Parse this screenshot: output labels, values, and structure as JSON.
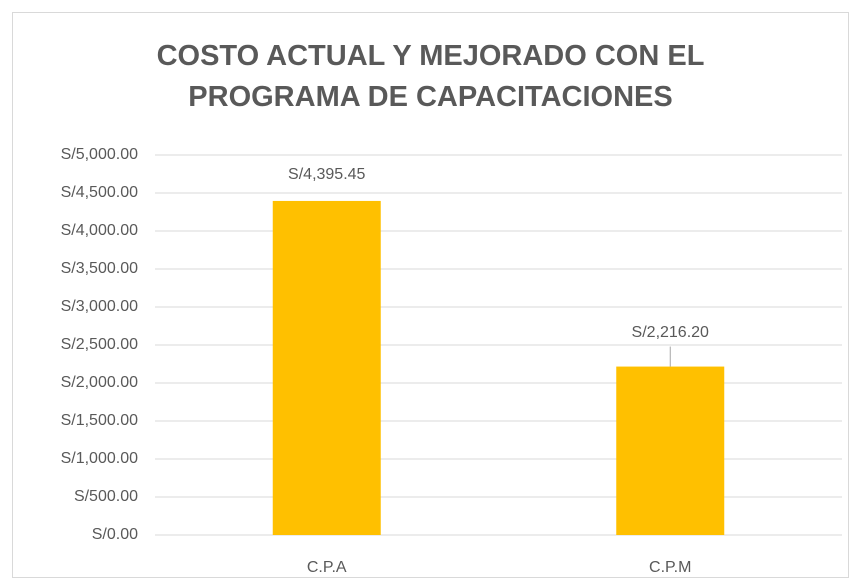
{
  "chart_data": {
    "type": "bar",
    "title": "COSTO ACTUAL Y MEJORADO CON EL PROGRAMA DE CAPACITACIONES",
    "categories": [
      "C.P.A",
      "C.P.M"
    ],
    "values": [
      4395.45,
      2216.2
    ],
    "value_labels": [
      "S/4,395.45",
      "S/2,216.20"
    ],
    "color": "#ffc000",
    "ylim": [
      0,
      5000
    ],
    "yticks": [
      {
        "value": 0,
        "label": "S/0.00"
      },
      {
        "value": 500,
        "label": "S/500.00"
      },
      {
        "value": 1000,
        "label": "S/1,000.00"
      },
      {
        "value": 1500,
        "label": "S/1,500.00"
      },
      {
        "value": 2000,
        "label": "S/2,000.00"
      },
      {
        "value": 2500,
        "label": "S/2,500.00"
      },
      {
        "value": 3000,
        "label": "S/3,000.00"
      },
      {
        "value": 3500,
        "label": "S/3,500.00"
      },
      {
        "value": 4000,
        "label": "S/4,000.00"
      },
      {
        "value": 4500,
        "label": "S/4,500.00"
      },
      {
        "value": 5000,
        "label": "S/5,000.00"
      }
    ],
    "grid": true
  }
}
